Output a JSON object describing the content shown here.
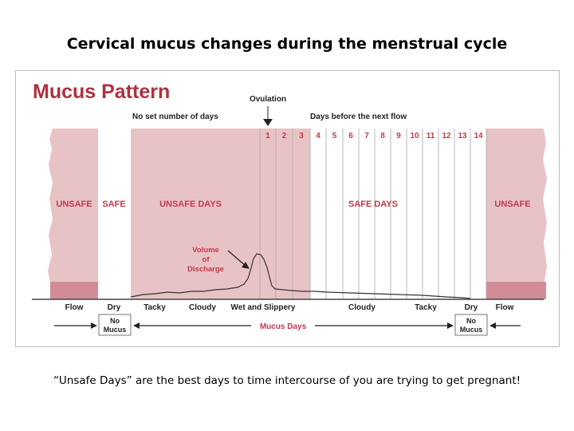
{
  "slide": {
    "title": "Cervical mucus changes during the menstrual cycle",
    "caption": "“Unsafe Days” are the best days to time intercourse of you are trying to get pregnant!"
  },
  "diagram": {
    "heading": "Mucus Pattern",
    "ovulation_label": "Ovulation",
    "no_set_label": "No set number of days",
    "days_before_label": "Days before the next flow",
    "day_numbers": [
      "1",
      "2",
      "3",
      "4",
      "5",
      "6",
      "7",
      "8",
      "9",
      "10",
      "11",
      "12",
      "13",
      "14"
    ],
    "zones": {
      "unsafe_left": "UNSAFE",
      "safe_left": "SAFE",
      "unsafe_days": "UNSAFE DAYS",
      "safe_days": "SAFE DAYS",
      "unsafe_right": "UNSAFE"
    },
    "volume_label": [
      "Volume",
      "of",
      "Discharge"
    ],
    "phases": {
      "flow_left": "Flow",
      "dry_left": "Dry",
      "tacky_left": "Tacky",
      "cloudy_left": "Cloudy",
      "wet": "Wet and Slippery",
      "cloudy_right": "Cloudy",
      "tacky_right": "Tacky",
      "dry_right": "Dry",
      "flow_right": "Flow"
    },
    "no_mucus": [
      "No",
      "Mucus"
    ],
    "mucus_days": "Mucus Days",
    "colors": {
      "heading_red": "#b0303f",
      "unsafe_fill": "#e8c3c6",
      "flow_fill": "#d18c95",
      "label_red": "#c23a4a"
    }
  }
}
